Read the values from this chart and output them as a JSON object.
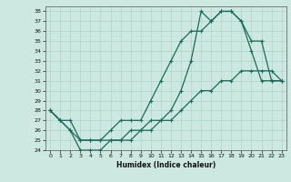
{
  "xlabel": "Humidex (Indice chaleur)",
  "ylabel": "",
  "xlim": [
    -0.5,
    23.5
  ],
  "ylim": [
    24,
    38.5
  ],
  "background_color": "#cce8e0",
  "grid_color": "#aad4cc",
  "line_color": "#1a6b5a",
  "line1_x": [
    0,
    1,
    2,
    3,
    4,
    5,
    6,
    7,
    8,
    9,
    10,
    11,
    12,
    13,
    14,
    15,
    16,
    17,
    18,
    19,
    20,
    21,
    22,
    23
  ],
  "line1_y": [
    28,
    27,
    27,
    25,
    25,
    25,
    25,
    25,
    26,
    26,
    27,
    27,
    28,
    30,
    33,
    38,
    37,
    38,
    38,
    37,
    34,
    31,
    31,
    31
  ],
  "line2_x": [
    0,
    1,
    2,
    3,
    4,
    5,
    6,
    7,
    8,
    9,
    10,
    11,
    12,
    13,
    14,
    15,
    16,
    17,
    18,
    19,
    20,
    21,
    22,
    23
  ],
  "line2_y": [
    28,
    27,
    26,
    25,
    25,
    25,
    26,
    27,
    27,
    27,
    29,
    31,
    33,
    35,
    36,
    36,
    37,
    38,
    38,
    37,
    35,
    35,
    31,
    31
  ],
  "line3_x": [
    0,
    1,
    2,
    3,
    4,
    5,
    6,
    7,
    8,
    9,
    10,
    11,
    12,
    13,
    14,
    15,
    16,
    17,
    18,
    19,
    20,
    21,
    22,
    23
  ],
  "line3_y": [
    28,
    27,
    26,
    24,
    24,
    24,
    25,
    25,
    25,
    26,
    26,
    27,
    27,
    28,
    29,
    30,
    30,
    31,
    31,
    32,
    32,
    32,
    32,
    31
  ],
  "yticks": [
    24,
    25,
    26,
    27,
    28,
    29,
    30,
    31,
    32,
    33,
    34,
    35,
    36,
    37,
    38
  ],
  "xticks": [
    0,
    1,
    2,
    3,
    4,
    5,
    6,
    7,
    8,
    9,
    10,
    11,
    12,
    13,
    14,
    15,
    16,
    17,
    18,
    19,
    20,
    21,
    22,
    23
  ]
}
